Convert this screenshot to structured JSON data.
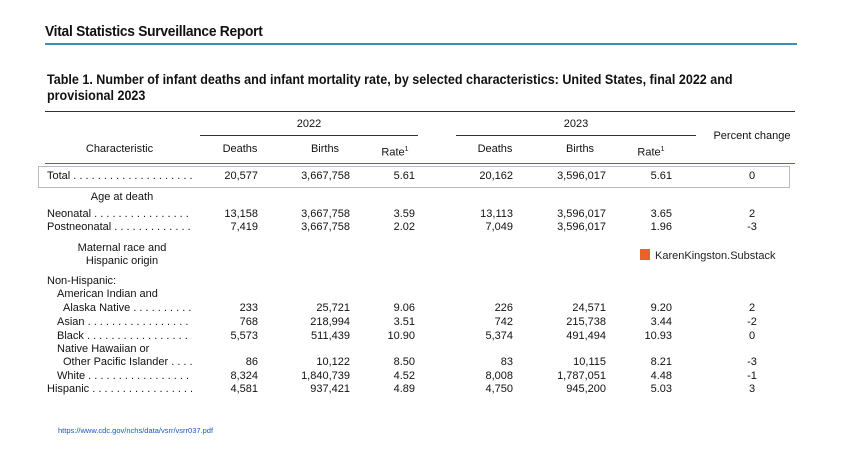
{
  "header": {
    "title": "Vital Statistics Surveillance Report"
  },
  "table": {
    "title": "Table 1. Number of infant deaths and infant mortality rate, by selected characteristics: United States, final 2022 and provisional 2023",
    "groups": [
      "2022",
      "2023"
    ],
    "columns": [
      "Characteristic",
      "Deaths",
      "Births",
      "Rate",
      "Deaths",
      "Births",
      "Rate",
      "Percent change"
    ],
    "footnote_marker": "1",
    "rows": [
      {
        "label": "Total",
        "values": [
          "20,577",
          "3,667,758",
          "5.61",
          "20,162",
          "3,596,017",
          "5.61",
          "0"
        ]
      },
      {
        "label": "Age at death"
      },
      {
        "label": "Neonatal",
        "values": [
          "13,158",
          "3,667,758",
          "3.59",
          "13,113",
          "3,596,017",
          "3.65",
          "2"
        ]
      },
      {
        "label": "Postneonatal",
        "values": [
          "7,419",
          "3,667,758",
          "2.02",
          "7,049",
          "3,596,017",
          "1.96",
          "-3"
        ]
      },
      {
        "label": "Maternal race and\nHispanic origin"
      },
      {
        "label": "Non-Hispanic:"
      },
      {
        "label": "American Indian and"
      },
      {
        "label": "Alaska Native",
        "values": [
          "233",
          "25,721",
          "9.06",
          "226",
          "24,571",
          "9.20",
          "2"
        ]
      },
      {
        "label": "Asian",
        "values": [
          "768",
          "218,994",
          "3.51",
          "742",
          "215,738",
          "3.44",
          "-2"
        ]
      },
      {
        "label": "Black",
        "values": [
          "5,573",
          "511,439",
          "10.90",
          "5,374",
          "491,494",
          "10.93",
          "0"
        ]
      },
      {
        "label": "Native Hawaiian or"
      },
      {
        "label": "Other Pacific Islander",
        "values": [
          "86",
          "10,122",
          "8.50",
          "83",
          "10,115",
          "8.21",
          "-3"
        ]
      },
      {
        "label": "White",
        "values": [
          "8,324",
          "1,840,739",
          "4.52",
          "8,008",
          "1,787,051",
          "4.48",
          "-1"
        ]
      },
      {
        "label": "Hispanic",
        "values": [
          "4,581",
          "937,421",
          "4.89",
          "4,750",
          "945,200",
          "5.03",
          "3"
        ]
      }
    ]
  },
  "watermark": "KarenKingston.Substack",
  "source": "https://www.cdc.gov/nchs/data/vsrr/vsrr037.pdf"
}
